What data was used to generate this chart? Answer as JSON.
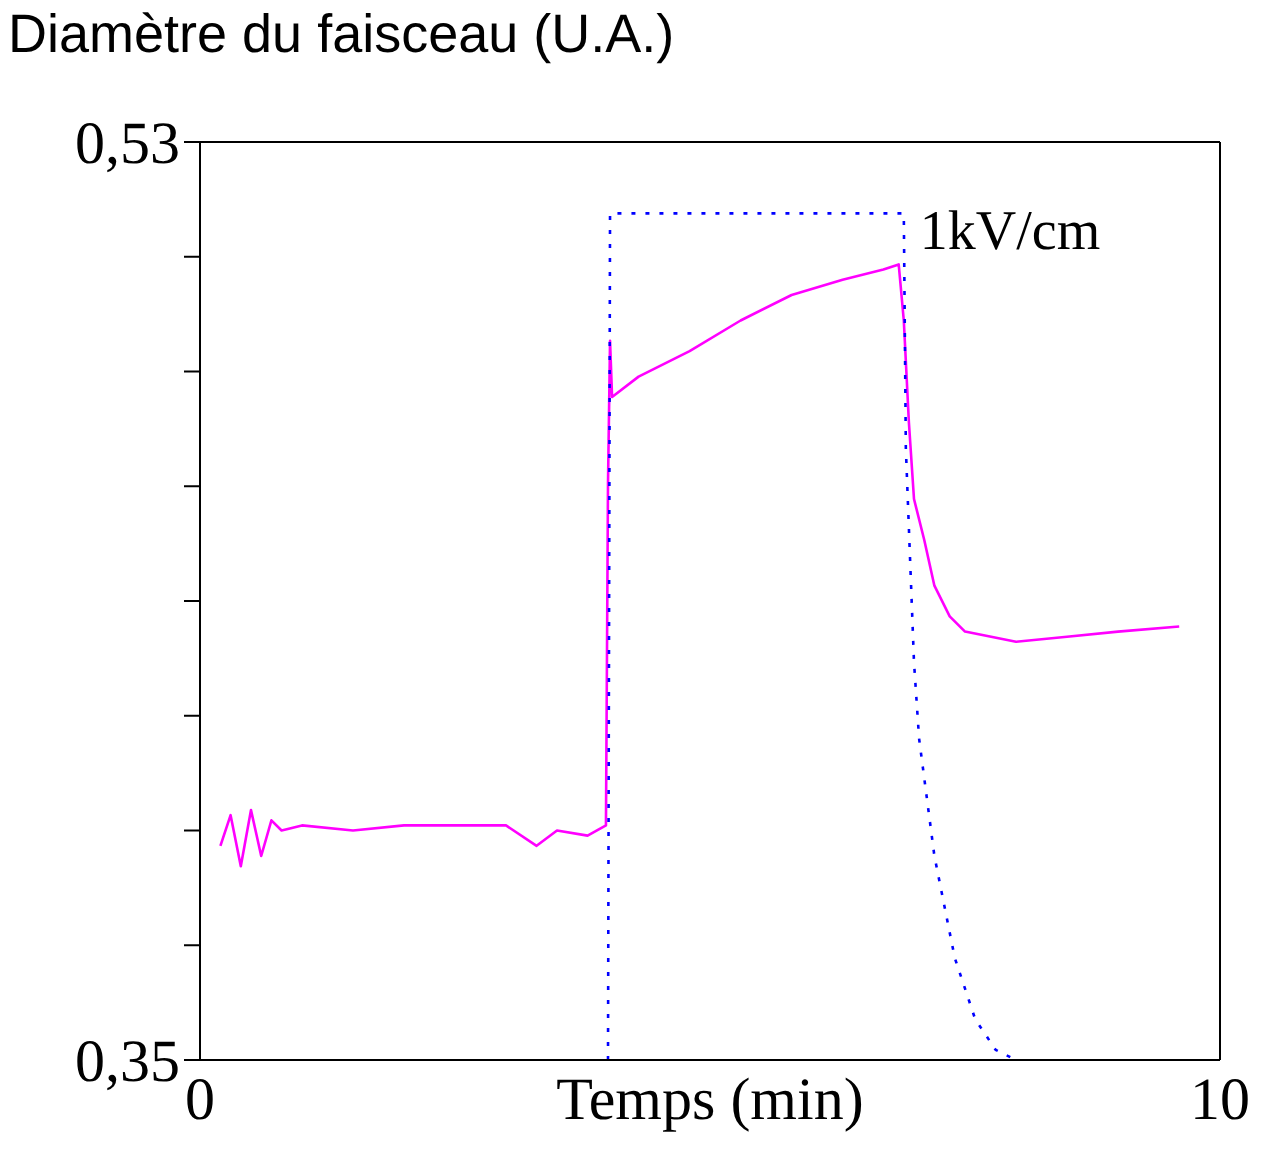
{
  "chart_data": {
    "type": "line",
    "ylabel": "Diamètre du faisceau (U.A.)",
    "xlabel": "Temps (min)",
    "xlim": [
      0,
      10
    ],
    "xticks": [
      0,
      10
    ],
    "ylim": [
      0.35,
      0.53
    ],
    "yticks": [
      {
        "value": 0.35,
        "label": "0,35"
      },
      {
        "value": 0.3725,
        "label": null
      },
      {
        "value": 0.395,
        "label": null
      },
      {
        "value": 0.4175,
        "label": null
      },
      {
        "value": 0.44,
        "label": null
      },
      {
        "value": 0.4625,
        "label": null
      },
      {
        "value": 0.485,
        "label": null
      },
      {
        "value": 0.5075,
        "label": null
      },
      {
        "value": 0.53,
        "label": "0,53"
      }
    ],
    "marker": "none",
    "series": [
      {
        "color": "#ff00ff",
        "line_style": "solid",
        "x": [
          0.2,
          0.3,
          0.4,
          0.5,
          0.6,
          0.7,
          0.8,
          1.0,
          1.5,
          2.0,
          2.5,
          3.0,
          3.3,
          3.5,
          3.8,
          3.98,
          4.0,
          4.02,
          4.04,
          4.3,
          4.8,
          5.3,
          5.8,
          6.3,
          6.7,
          6.85,
          6.9,
          6.95,
          7.0,
          7.1,
          7.2,
          7.35,
          7.5,
          8.0,
          8.5,
          9.0,
          9.6
        ],
        "values": [
          0.392,
          0.398,
          0.388,
          0.399,
          0.39,
          0.397,
          0.395,
          0.396,
          0.395,
          0.396,
          0.396,
          0.396,
          0.392,
          0.395,
          0.394,
          0.396,
          0.463,
          0.491,
          0.48,
          0.484,
          0.489,
          0.495,
          0.5,
          0.503,
          0.505,
          0.506,
          0.495,
          0.475,
          0.46,
          0.452,
          0.443,
          0.437,
          0.434,
          0.432,
          0.433,
          0.434,
          0.435
        ]
      },
      {
        "name": "1kV/cm",
        "color": "#0000ff",
        "line_style": "dotted",
        "x": [
          4.0,
          4.02,
          6.9,
          6.92,
          7.0,
          7.05,
          7.2,
          7.4,
          7.6,
          7.8,
          8.0
        ],
        "values": [
          0.35,
          0.516,
          0.516,
          0.47,
          0.428,
          0.413,
          0.39,
          0.37,
          0.358,
          0.352,
          0.35
        ]
      }
    ]
  }
}
